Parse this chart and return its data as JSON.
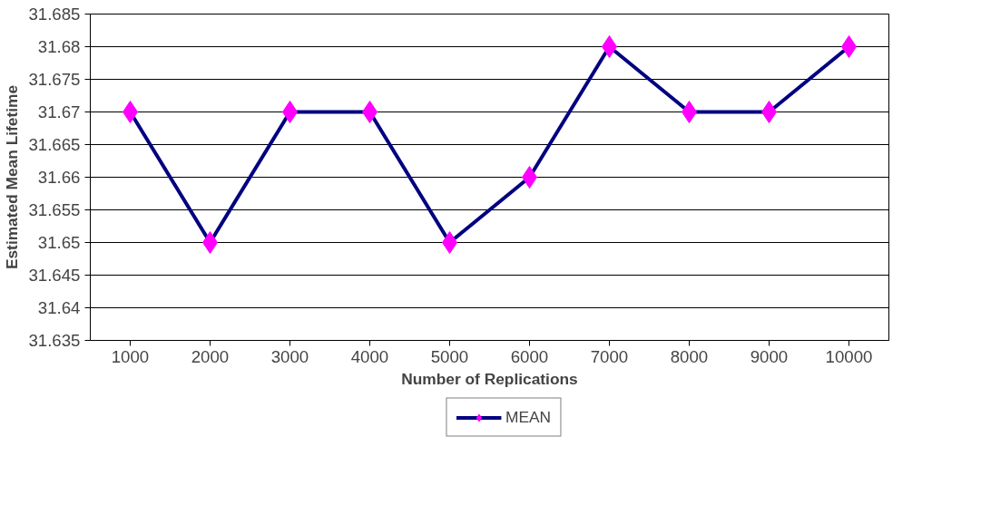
{
  "chart_data": {
    "type": "line",
    "xlabel": "Number of Replications",
    "ylabel": "Estimated Mean Lifetime",
    "categories": [
      "1000",
      "2000",
      "3000",
      "4000",
      "5000",
      "6000",
      "7000",
      "8000",
      "9000",
      "10000"
    ],
    "series": [
      {
        "name": "MEAN",
        "color": "#000080",
        "colors": [
          "#ff00ff",
          "#ff00ff",
          "#ff00ff",
          "#ff00ff",
          "#ff00ff",
          "#ff00ff",
          "#ff00ff",
          "#ff00ff",
          "#ff00ff",
          "#ff00ff"
        ],
        "values": [
          31.67,
          31.65,
          31.67,
          31.67,
          31.65,
          31.66,
          31.68,
          31.67,
          31.67,
          31.68
        ]
      }
    ],
    "ylim": [
      31.635,
      31.685
    ],
    "yticks": [
      31.635,
      31.64,
      31.645,
      31.65,
      31.655,
      31.66,
      31.665,
      31.67,
      31.675,
      31.68,
      31.685
    ],
    "grid": "y",
    "legend": "bottom",
    "marker": "diamond",
    "line_style": "solid"
  }
}
